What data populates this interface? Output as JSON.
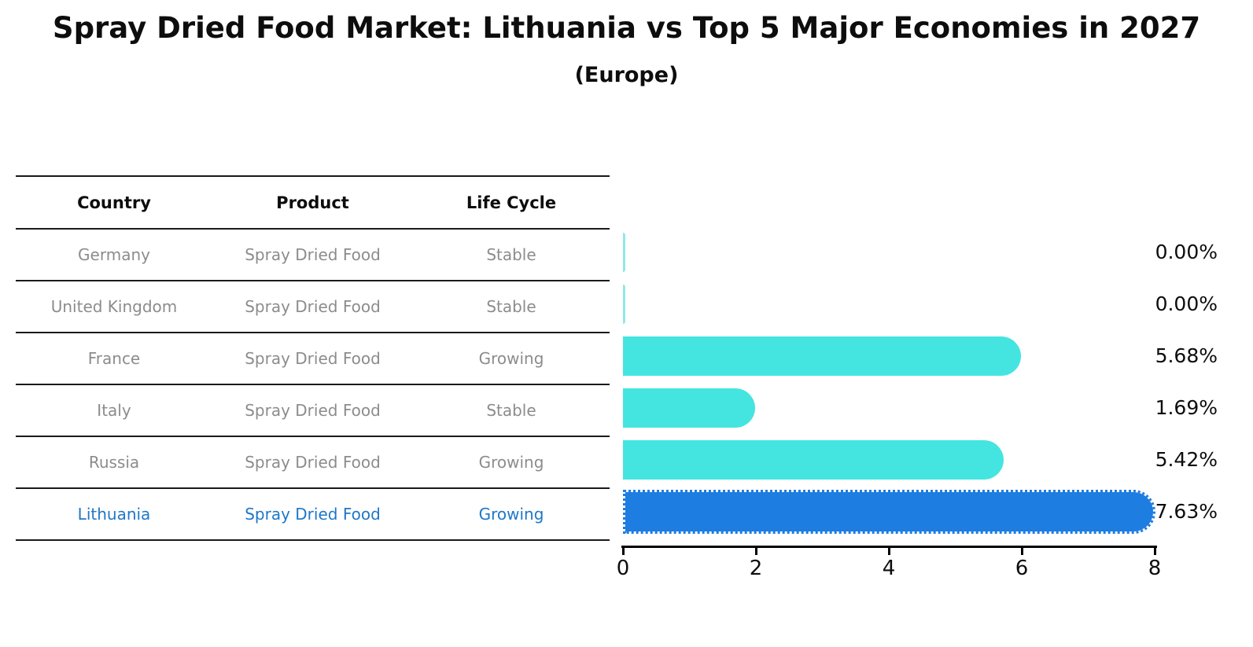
{
  "title": "Spray Dried Food Market: Lithuania vs Top 5 Major Economies in 2027",
  "subtitle": "(Europe)",
  "table": {
    "headers": [
      "Country",
      "Product",
      "Life Cycle"
    ],
    "rows": [
      {
        "country": "Germany",
        "product": "Spray Dried Food",
        "life_cycle": "Stable",
        "highlight": false
      },
      {
        "country": "United Kingdom",
        "product": "Spray Dried Food",
        "life_cycle": "Stable",
        "highlight": false
      },
      {
        "country": "France",
        "product": "Spray Dried Food",
        "life_cycle": "Growing",
        "highlight": false
      },
      {
        "country": "Italy",
        "product": "Spray Dried Food",
        "life_cycle": "Stable",
        "highlight": false
      },
      {
        "country": "Russia",
        "product": "Spray Dried Food",
        "life_cycle": "Growing",
        "highlight": false
      },
      {
        "country": "Lithuania",
        "product": "Spray Dried Food",
        "life_cycle": "Growing",
        "highlight": true
      }
    ]
  },
  "chart_data": {
    "type": "bar",
    "orientation": "horizontal",
    "title": "Spray Dried Food Market: Lithuania vs Top 5 Major Economies in 2027",
    "subtitle": "(Europe)",
    "categories": [
      "Germany",
      "United Kingdom",
      "France",
      "Italy",
      "Russia",
      "Lithuania"
    ],
    "values": [
      0.0,
      0.0,
      5.68,
      1.69,
      5.42,
      7.63
    ],
    "value_labels": [
      "0.00%",
      "0.00%",
      "5.68%",
      "1.69%",
      "5.42%",
      "7.63%"
    ],
    "xlim": [
      0,
      8
    ],
    "xticks": [
      "0",
      "2",
      "4",
      "6",
      "8"
    ],
    "grid": false,
    "legend": false,
    "bar_color": "#44e5e0",
    "zero_bar_color": "#8fe9e6",
    "highlight_index": 5,
    "highlight_bar_color": "#1e7de0",
    "highlight_border_style": "dotted"
  },
  "colors": {
    "text_primary": "#0d0d0d",
    "text_muted": "#8c8c8c",
    "highlight_text": "#1f77c8",
    "rule_color": "#1a1a1a"
  }
}
